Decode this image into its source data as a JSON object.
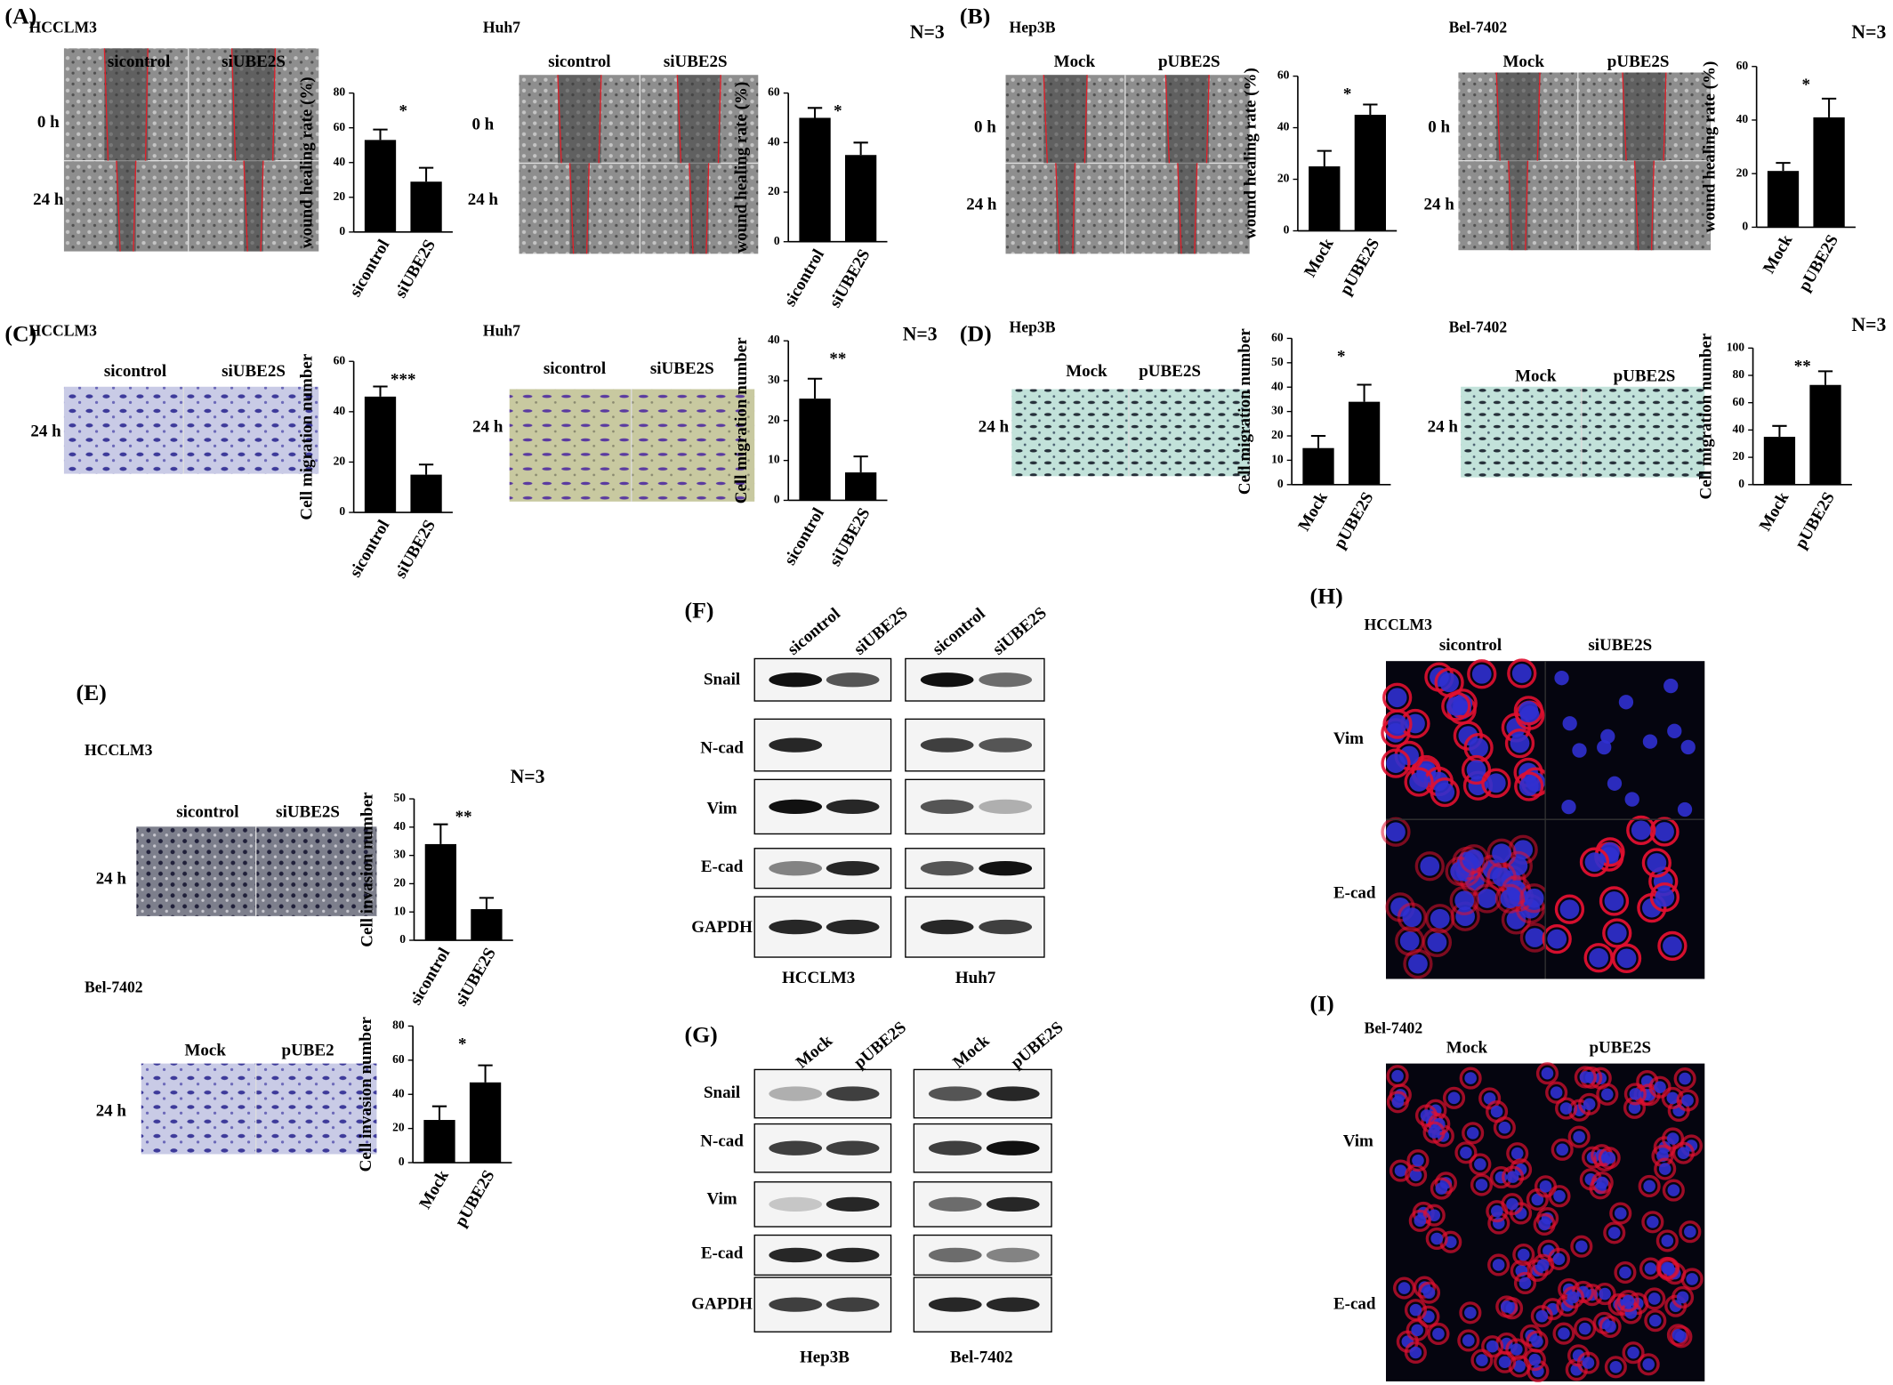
{
  "chart_data": [
    {
      "type": "bar",
      "ylabel": "wound healing rate (%)",
      "categories": [
        "sicontrol",
        "siUBE2S"
      ],
      "values": [
        53,
        29
      ],
      "errors": [
        6,
        8
      ],
      "annotation": "*",
      "ylim": [
        0,
        80
      ],
      "yticks": [
        0,
        20,
        40,
        60,
        80
      ],
      "color": "#000000"
    },
    {
      "type": "bar",
      "ylabel": "wound healing rate (%)",
      "categories": [
        "sicontrol",
        "siUBE2S"
      ],
      "values": [
        50,
        35
      ],
      "errors": [
        4,
        5
      ],
      "annotation": "*",
      "ylim": [
        0,
        60
      ],
      "yticks": [
        0,
        20,
        40,
        60
      ],
      "color": "#000000"
    },
    {
      "type": "bar",
      "ylabel": "wound healing rate (%)",
      "categories": [
        "Mock",
        "pUBE2S"
      ],
      "values": [
        25,
        45
      ],
      "errors": [
        6,
        4
      ],
      "annotation": "*",
      "ylim": [
        0,
        60
      ],
      "yticks": [
        0,
        20,
        40,
        60
      ],
      "color": "#000000"
    },
    {
      "type": "bar",
      "ylabel": "wound healing rate (%)",
      "categories": [
        "Mock",
        "pUBE2S"
      ],
      "values": [
        21,
        41
      ],
      "errors": [
        3,
        7
      ],
      "annotation": "*",
      "ylim": [
        0,
        60
      ],
      "yticks": [
        0,
        20,
        40,
        60
      ],
      "color": "#000000"
    },
    {
      "type": "bar",
      "ylabel": "Cell migration number",
      "categories": [
        "sicontrol",
        "siUBE2S"
      ],
      "values": [
        46,
        15
      ],
      "errors": [
        4,
        4
      ],
      "annotation": "***",
      "ylim": [
        0,
        60
      ],
      "yticks": [
        0,
        20,
        40,
        60
      ],
      "color": "#000000"
    },
    {
      "type": "bar",
      "ylabel": "Cell migration number",
      "categories": [
        "sicontrol",
        "siUBE2S"
      ],
      "values": [
        25.5,
        7
      ],
      "errors": [
        5,
        4
      ],
      "annotation": "**",
      "ylim": [
        0,
        40
      ],
      "yticks": [
        0,
        10,
        20,
        30,
        40
      ],
      "color": "#000000"
    },
    {
      "type": "bar",
      "ylabel": "Cell migration number",
      "categories": [
        "Mock",
        "pUBE2S"
      ],
      "values": [
        15,
        34
      ],
      "errors": [
        5,
        7
      ],
      "annotation": "*",
      "ylim": [
        0,
        60
      ],
      "yticks": [
        0,
        10,
        20,
        30,
        40,
        50,
        60
      ],
      "color": "#000000"
    },
    {
      "type": "bar",
      "ylabel": "Cell migration number",
      "categories": [
        "Mock",
        "pUBE2S"
      ],
      "values": [
        35,
        73
      ],
      "errors": [
        8,
        10
      ],
      "annotation": "**",
      "ylim": [
        0,
        100
      ],
      "yticks": [
        0,
        20,
        40,
        60,
        80,
        100
      ],
      "color": "#000000"
    },
    {
      "type": "bar",
      "ylabel": "Cell invasion number",
      "categories": [
        "sicontrol",
        "siUBE2S"
      ],
      "values": [
        34,
        11
      ],
      "errors": [
        7,
        4
      ],
      "annotation": "**",
      "ylim": [
        0,
        50
      ],
      "yticks": [
        0,
        10,
        20,
        30,
        40,
        50
      ],
      "color": "#000000"
    },
    {
      "type": "bar",
      "ylabel": "Cell invasion number",
      "categories": [
        "Mock",
        "pUBE2S"
      ],
      "values": [
        25,
        47
      ],
      "errors": [
        8,
        10
      ],
      "annotation": "*",
      "ylim": [
        0,
        80
      ],
      "yticks": [
        0,
        20,
        40,
        60,
        80
      ],
      "color": "#000000"
    }
  ],
  "panels": [
    {
      "label": "(A)",
      "groups": [
        {
          "cell_line": "HCCLM3",
          "conditions": [
            "sicontrol",
            "siUBE2S"
          ],
          "times": [
            "0 h",
            "24 h"
          ]
        },
        {
          "cell_line": "Huh7",
          "conditions": [
            "sicontrol",
            "siUBE2S"
          ],
          "times": [
            "0 h",
            "24 h"
          ]
        }
      ],
      "note": "N=3"
    },
    {
      "label": "(B)",
      "groups": [
        {
          "cell_line": "Hep3B",
          "conditions": [
            "Mock",
            "pUBE2S"
          ],
          "times": [
            "0 h",
            "24 h"
          ]
        },
        {
          "cell_line": "Bel-7402",
          "conditions": [
            "Mock",
            "pUBE2S"
          ],
          "times": [
            "0 h",
            "24 h"
          ]
        }
      ],
      "note": "N=3"
    },
    {
      "label": "(C)",
      "groups": [
        {
          "cell_line": "HCCLM3",
          "conditions": [
            "sicontrol",
            "siUBE2S"
          ],
          "times": [
            "24 h"
          ]
        },
        {
          "cell_line": "Huh7",
          "conditions": [
            "sicontrol",
            "siUBE2S"
          ],
          "times": [
            "24 h"
          ]
        }
      ],
      "note": "N=3"
    },
    {
      "label": "(D)",
      "groups": [
        {
          "cell_line": "Hep3B",
          "conditions": [
            "Mock",
            "pUBE2S"
          ],
          "times": [
            "24 h"
          ]
        },
        {
          "cell_line": "Bel-7402",
          "conditions": [
            "Mock",
            "pUBE2S"
          ],
          "times": [
            "24 h"
          ]
        }
      ],
      "note": "N=3"
    },
    {
      "label": "(E)",
      "groups": [
        {
          "cell_line": "HCCLM3",
          "conditions": [
            "sicontrol",
            "siUBE2S"
          ],
          "times": [
            "24 h"
          ]
        },
        {
          "cell_line": "Bel-7402",
          "conditions": [
            "Mock",
            "pUBE2"
          ],
          "times": [
            "24 h"
          ]
        }
      ],
      "note": "N=3"
    },
    {
      "label": "(F)",
      "columns": [
        "sicontrol",
        "siUBE2S",
        "sicontrol",
        "siUBE2S"
      ],
      "rows": [
        "Snail",
        "N-cad",
        "Vim",
        "E-cad",
        "GAPDH"
      ],
      "cell_lines": [
        "HCCLM3",
        "Huh7"
      ]
    },
    {
      "label": "(G)",
      "columns": [
        "Mock",
        "pUBE2S",
        "Mock",
        "pUBE2S"
      ],
      "rows": [
        "Snail",
        "N-cad",
        "Vim",
        "E-cad",
        "GAPDH"
      ],
      "cell_lines": [
        "Hep3B",
        "Bel-7402"
      ]
    },
    {
      "label": "(H)",
      "cell_line": "HCCLM3",
      "conditions": [
        "sicontrol",
        "siUBE2S"
      ],
      "rows": [
        "Vim",
        "E-cad"
      ]
    },
    {
      "label": "(I)",
      "cell_line": "Bel-7402",
      "conditions": [
        "Mock",
        "pUBE2S"
      ],
      "rows": [
        "Vim",
        "E-cad"
      ]
    }
  ]
}
